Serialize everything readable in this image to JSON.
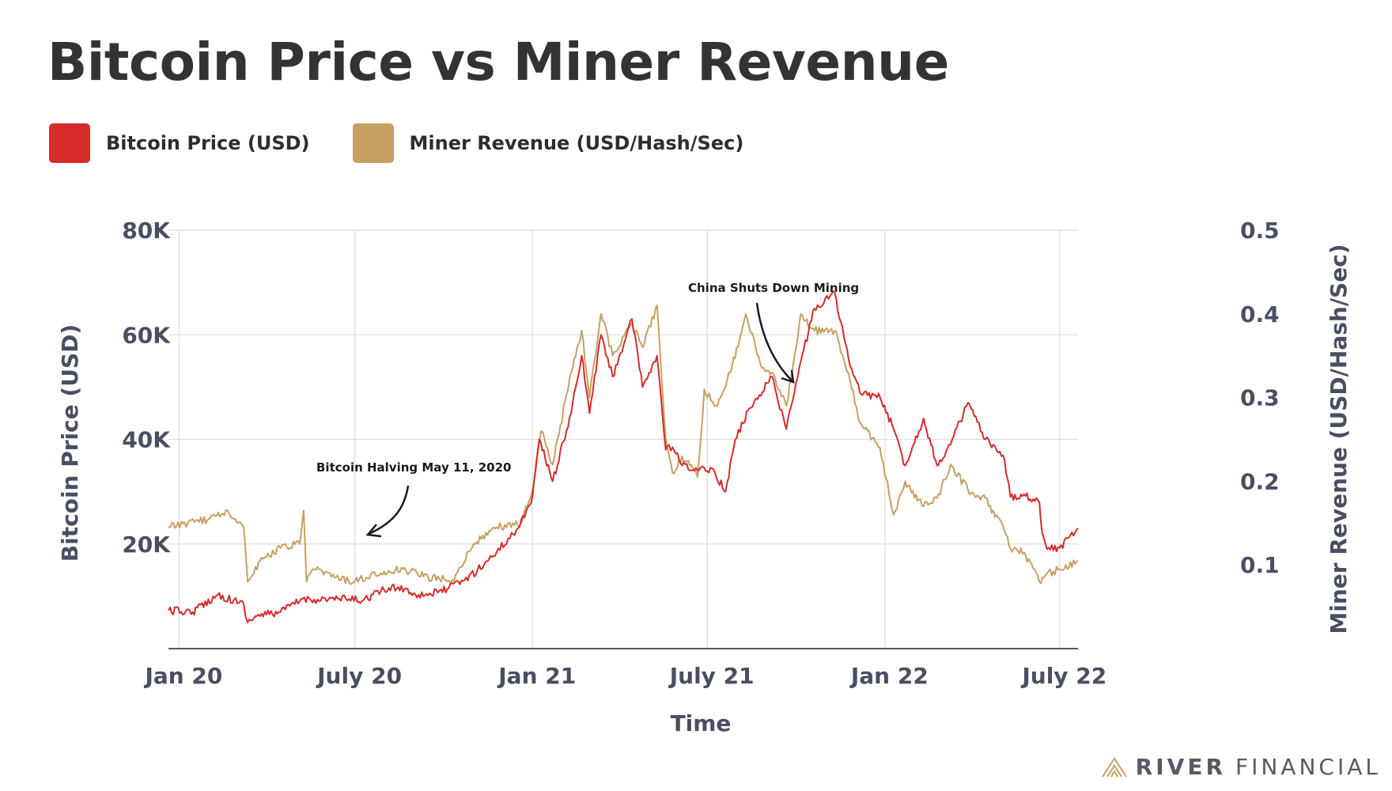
{
  "title": "Bitcoin Price vs Miner Revenue",
  "legend": {
    "items": [
      {
        "label": "Bitcoin Price (USD)",
        "color": "#d52b2b"
      },
      {
        "label": "Miner Revenue (USD/Hash/Sec)",
        "color": "#c6a062"
      }
    ]
  },
  "brand": {
    "part1": "RIVER",
    "part2": "FINANCIAL",
    "icon": "river-logo-icon"
  },
  "chart_data": {
    "type": "line",
    "title": "Bitcoin Price vs Miner Revenue",
    "xlabel": "Time",
    "ylabel_left": "Bitcoin Price (USD)",
    "ylabel_right": "Miner Revenue (USD/Hash/Sec)",
    "x_ticks": [
      "Jan 20",
      "July 20",
      "Jan 21",
      "July 21",
      "Jan 22",
      "July 22"
    ],
    "y_left_ticks": [
      "20K",
      "40K",
      "60K",
      "80K"
    ],
    "y_right_ticks": [
      "0.1",
      "0.2",
      "0.3",
      "0.4",
      "0.5"
    ],
    "y_left_range": [
      0,
      80000
    ],
    "y_right_range": [
      0,
      0.5
    ],
    "x_range": [
      "2019-12-21",
      "2022-07-20"
    ],
    "grid": true,
    "legend_position": "top-left",
    "annotations": [
      {
        "text": "Bitcoin Halving May 11, 2020",
        "date": "2020-05-11"
      },
      {
        "text": "China Shuts Down Mining",
        "date": "2021-06-21"
      }
    ],
    "series": [
      {
        "name": "Bitcoin Price (USD)",
        "axis": "left",
        "color": "#d52b2b",
        "x": [
          "2019-12-21",
          "2020-01-15",
          "2020-02-10",
          "2020-03-08",
          "2020-03-12",
          "2020-03-20",
          "2020-04-15",
          "2020-05-08",
          "2020-05-20",
          "2020-06-15",
          "2020-07-10",
          "2020-07-28",
          "2020-08-15",
          "2020-09-05",
          "2020-09-25",
          "2020-10-21",
          "2020-11-05",
          "2020-11-25",
          "2020-12-17",
          "2021-01-01",
          "2021-01-08",
          "2021-01-22",
          "2021-02-10",
          "2021-02-21",
          "2021-03-01",
          "2021-03-13",
          "2021-03-25",
          "2021-04-14",
          "2021-04-25",
          "2021-05-10",
          "2021-05-19",
          "2021-05-26",
          "2021-06-05",
          "2021-06-21",
          "2021-07-06",
          "2021-07-20",
          "2021-07-30",
          "2021-08-14",
          "2021-09-06",
          "2021-09-21",
          "2021-10-06",
          "2021-10-20",
          "2021-11-10",
          "2021-11-26",
          "2021-12-06",
          "2021-12-27",
          "2022-01-10",
          "2022-01-22",
          "2022-02-10",
          "2022-02-24",
          "2022-03-10",
          "2022-03-28",
          "2022-04-15",
          "2022-05-05",
          "2022-05-11",
          "2022-05-25",
          "2022-06-10",
          "2022-06-13",
          "2022-06-18",
          "2022-07-01",
          "2022-07-20"
        ],
        "values": [
          7300,
          7000,
          10300,
          8500,
          5000,
          6200,
          7000,
          9500,
          9400,
          9500,
          9300,
          11000,
          11800,
          10300,
          10700,
          12900,
          15000,
          18500,
          23000,
          29000,
          40000,
          32000,
          45000,
          56000,
          45000,
          60000,
          52000,
          63000,
          50000,
          56000,
          38000,
          38500,
          35000,
          34000,
          34500,
          30000,
          40000,
          46000,
          52000,
          42000,
          55000,
          65000,
          68000,
          54000,
          49000,
          48000,
          42000,
          35000,
          44000,
          35000,
          39000,
          47000,
          40000,
          36000,
          29000,
          29500,
          28000,
          22000,
          19000,
          19300,
          23000
        ]
      },
      {
        "name": "Miner Revenue (USD/Hash/Sec)",
        "axis": "right",
        "color": "#c6a062",
        "x": [
          "2019-12-21",
          "2020-01-10",
          "2020-02-01",
          "2020-02-20",
          "2020-03-08",
          "2020-03-12",
          "2020-03-25",
          "2020-04-15",
          "2020-05-05",
          "2020-05-09",
          "2020-05-12",
          "2020-05-20",
          "2020-06-10",
          "2020-07-01",
          "2020-07-28",
          "2020-08-20",
          "2020-09-15",
          "2020-10-10",
          "2020-11-01",
          "2020-11-25",
          "2020-12-20",
          "2021-01-01",
          "2021-01-10",
          "2021-01-22",
          "2021-02-10",
          "2021-02-21",
          "2021-03-01",
          "2021-03-13",
          "2021-03-25",
          "2021-04-14",
          "2021-04-25",
          "2021-05-10",
          "2021-05-19",
          "2021-05-26",
          "2021-06-05",
          "2021-06-21",
          "2021-06-28",
          "2021-07-10",
          "2021-07-25",
          "2021-08-10",
          "2021-08-25",
          "2021-09-06",
          "2021-09-21",
          "2021-10-06",
          "2021-10-20",
          "2021-11-10",
          "2021-11-26",
          "2021-12-06",
          "2021-12-27",
          "2022-01-10",
          "2022-01-22",
          "2022-02-10",
          "2022-02-24",
          "2022-03-10",
          "2022-03-28",
          "2022-04-15",
          "2022-05-05",
          "2022-05-11",
          "2022-05-25",
          "2022-06-10",
          "2022-06-13",
          "2022-06-18",
          "2022-07-01",
          "2022-07-20"
        ],
        "values": [
          0.145,
          0.15,
          0.155,
          0.165,
          0.145,
          0.08,
          0.105,
          0.12,
          0.125,
          0.165,
          0.08,
          0.095,
          0.085,
          0.08,
          0.09,
          0.095,
          0.085,
          0.082,
          0.125,
          0.145,
          0.15,
          0.19,
          0.26,
          0.22,
          0.33,
          0.38,
          0.3,
          0.4,
          0.35,
          0.39,
          0.36,
          0.41,
          0.25,
          0.21,
          0.23,
          0.205,
          0.31,
          0.29,
          0.33,
          0.4,
          0.34,
          0.33,
          0.29,
          0.4,
          0.38,
          0.38,
          0.32,
          0.27,
          0.24,
          0.16,
          0.2,
          0.17,
          0.18,
          0.22,
          0.19,
          0.18,
          0.14,
          0.12,
          0.115,
          0.08,
          0.085,
          0.09,
          0.095,
          0.105
        ]
      }
    ]
  }
}
